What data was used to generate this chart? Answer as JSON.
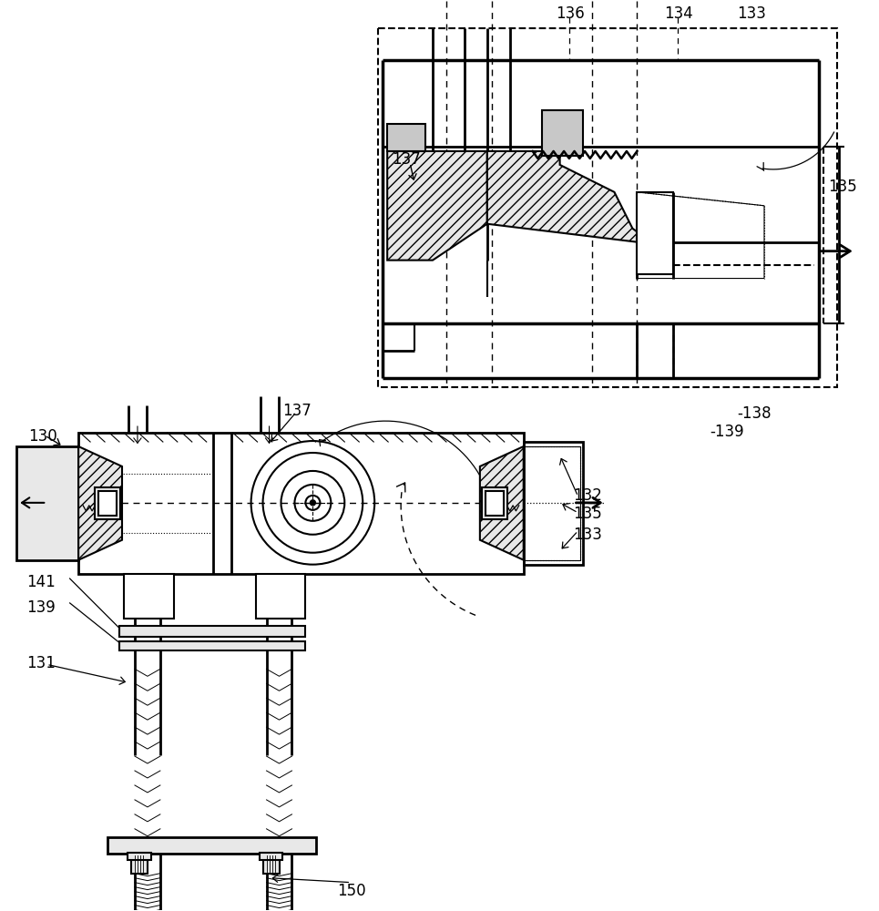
{
  "bg_color": "#ffffff",
  "lc": "#111111",
  "gray_fill": "#c8c8c8",
  "light_fill": "#e8e8e8",
  "figsize": [
    9.65,
    10.0
  ],
  "dpi": 100
}
